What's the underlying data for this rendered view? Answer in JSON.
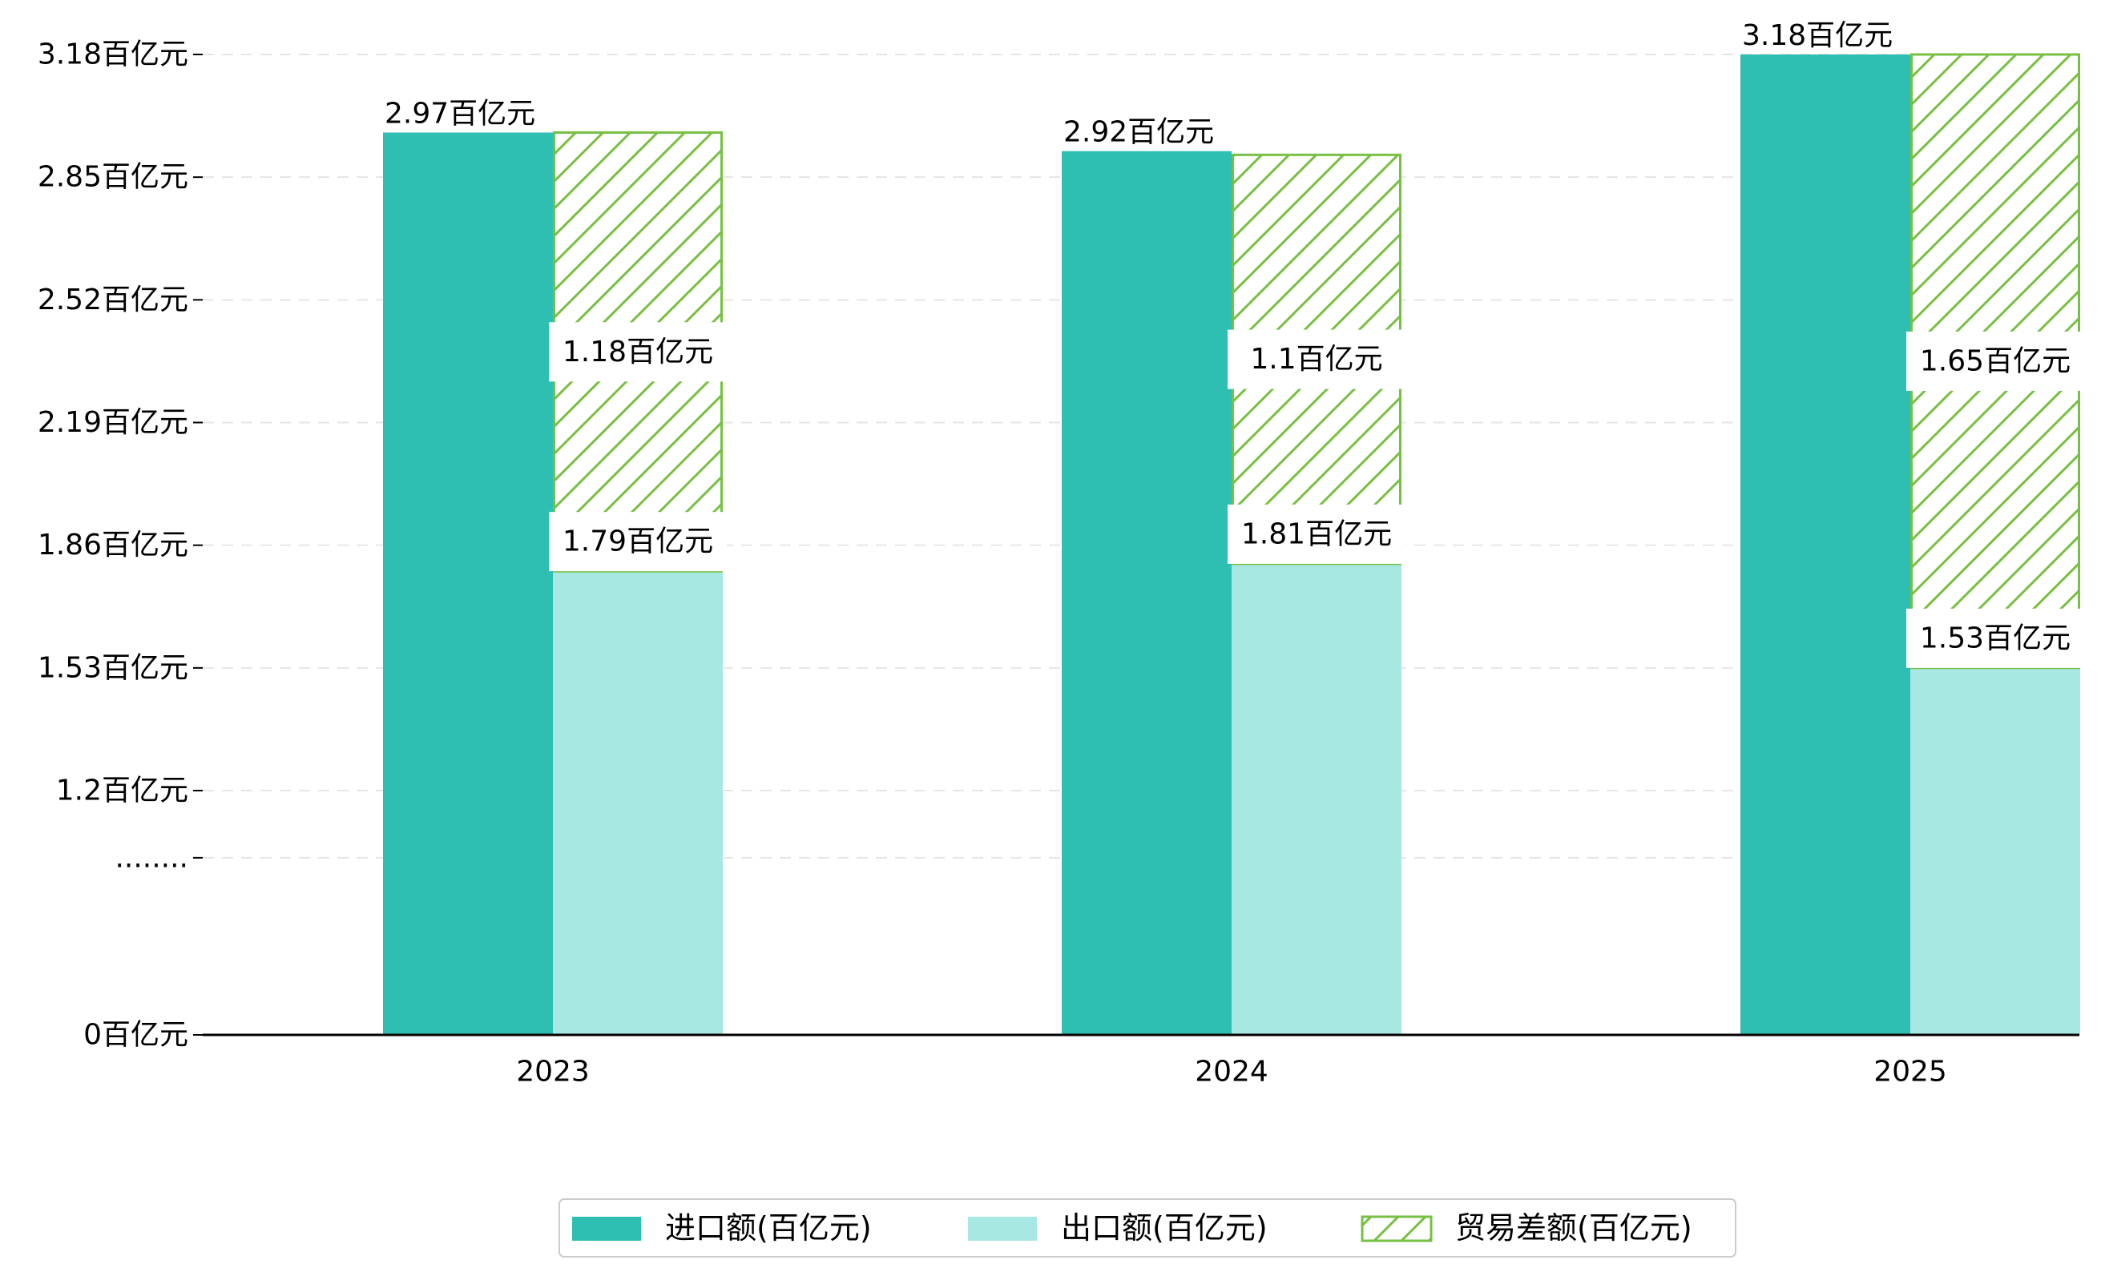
{
  "chart_data": {
    "type": "bar",
    "categories": [
      "2023",
      "2024",
      "2025"
    ],
    "series": [
      {
        "name": "进口额(百亿元)",
        "values": [
          2.97,
          2.92,
          3.18
        ],
        "value_labels": [
          "2.97百亿元",
          "2.92百亿元",
          "3.18百亿元"
        ],
        "color": "#2fbfb2"
      },
      {
        "name": "出口额(百亿元)",
        "values": [
          1.79,
          1.81,
          1.53
        ],
        "value_labels": [
          "1.79百亿元",
          "1.81百亿元",
          "1.53百亿元"
        ],
        "color": "#a8e8e2"
      },
      {
        "name": "贸易差额(百亿元)",
        "values": [
          1.18,
          1.1,
          1.65
        ],
        "value_labels": [
          "1.18百亿元",
          "1.1百亿元",
          "1.65百亿元"
        ],
        "color": "#77c043",
        "pattern": "hatch",
        "stacked_on": "出口额(百亿元)"
      }
    ],
    "y_ticks": [
      {
        "value": 0,
        "label": "0百亿元"
      },
      {
        "value": 0.87,
        "label": "........"
      },
      {
        "value": 1.2,
        "label": "1.2百亿元"
      },
      {
        "value": 1.53,
        "label": "1.53百亿元"
      },
      {
        "value": 1.86,
        "label": "1.86百亿元"
      },
      {
        "value": 2.19,
        "label": "2.19百亿元"
      },
      {
        "value": 2.52,
        "label": "2.52百亿元"
      },
      {
        "value": 2.85,
        "label": "2.85百亿元"
      },
      {
        "value": 3.18,
        "label": "3.18百亿元"
      }
    ],
    "axis_break": "broken y-axis between 0 and 1.2",
    "grid": "horizontal dashed",
    "legend_position": "bottom-center",
    "title": "",
    "xlabel": "",
    "ylabel": ""
  }
}
